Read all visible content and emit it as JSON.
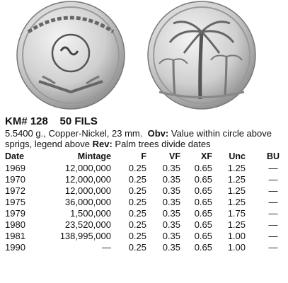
{
  "header": {
    "title": "KM# 128    50 FILS"
  },
  "description": {
    "specs": "5.5400 g., Copper-Nickel, 23 mm.",
    "obv_label": "Obv:",
    "obv": "Value within circle above sprigs, legend above",
    "rev_label": "Rev:",
    "rev": "Palm trees divide dates"
  },
  "table": {
    "columns": [
      "Date",
      "Mintage",
      "F",
      "VF",
      "XF",
      "Unc",
      "BU"
    ],
    "rows": [
      [
        "1969",
        "12,000,000",
        "0.25",
        "0.35",
        "0.65",
        "1.25",
        "—"
      ],
      [
        "1970",
        "12,000,000",
        "0.25",
        "0.35",
        "0.65",
        "1.25",
        "—"
      ],
      [
        "1972",
        "12,000,000",
        "0.25",
        "0.35",
        "0.65",
        "1.25",
        "—"
      ],
      [
        "1975",
        "36,000,000",
        "0.25",
        "0.35",
        "0.65",
        "1.25",
        "—"
      ],
      [
        "1979",
        "1,500,000",
        "0.25",
        "0.35",
        "0.65",
        "1.75",
        "—"
      ],
      [
        "1980",
        "23,520,000",
        "0.25",
        "0.35",
        "0.65",
        "1.25",
        "—"
      ],
      [
        "1981",
        "138,995,000",
        "0.25",
        "0.35",
        "0.65",
        "1.00",
        "—"
      ],
      [
        "1990",
        "—",
        "0.25",
        "0.35",
        "0.65",
        "1.00",
        "—"
      ]
    ]
  }
}
